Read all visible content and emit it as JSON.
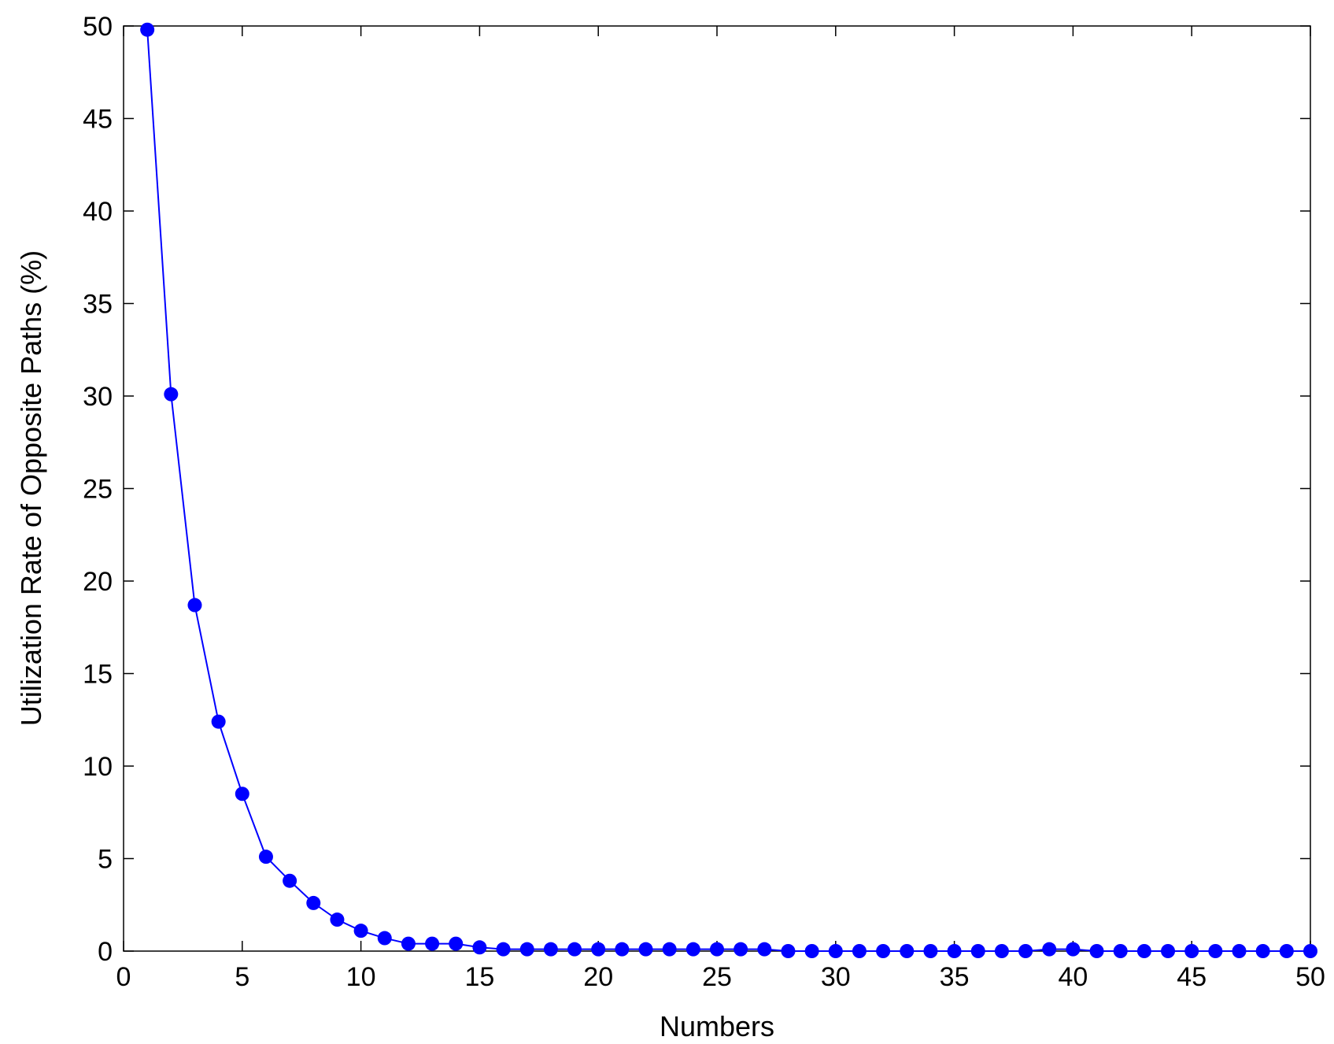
{
  "chart_data": {
    "type": "line",
    "title": "",
    "xlabel": "Numbers",
    "ylabel": "Utilization Rate of Opposite Paths (%)",
    "xlim": [
      0,
      50
    ],
    "ylim": [
      0,
      50
    ],
    "xticks": [
      "0",
      "5",
      "10",
      "15",
      "20",
      "25",
      "30",
      "35",
      "40",
      "45",
      "50"
    ],
    "yticks": [
      "0",
      "5",
      "10",
      "15",
      "20",
      "25",
      "30",
      "35",
      "40",
      "45",
      "50"
    ],
    "grid": false,
    "legend": "none",
    "series": [
      {
        "color": "#0000ff",
        "marker": "circle",
        "x": [
          1,
          2,
          3,
          4,
          5,
          6,
          7,
          8,
          9,
          10,
          11,
          12,
          13,
          14,
          15,
          16,
          17,
          18,
          19,
          20,
          21,
          22,
          23,
          24,
          25,
          26,
          27,
          28,
          29,
          30,
          31,
          32,
          33,
          34,
          35,
          36,
          37,
          38,
          39,
          40,
          41,
          42,
          43,
          44,
          45,
          46,
          47,
          48,
          49,
          50
        ],
        "values": [
          49.8,
          30.1,
          18.7,
          12.4,
          8.5,
          5.1,
          3.8,
          2.6,
          1.7,
          1.1,
          0.7,
          0.4,
          0.4,
          0.4,
          0.2,
          0.1,
          0.1,
          0.1,
          0.1,
          0.1,
          0.1,
          0.1,
          0.1,
          0.1,
          0.1,
          0.1,
          0.1,
          0.0,
          0.0,
          0.0,
          0.0,
          0.0,
          0.0,
          0.0,
          0.0,
          0.0,
          0.0,
          0.0,
          0.1,
          0.1,
          0.0,
          0.0,
          0.0,
          0.0,
          0.0,
          0.0,
          0.0,
          0.0,
          0.0,
          0.0
        ]
      }
    ]
  }
}
